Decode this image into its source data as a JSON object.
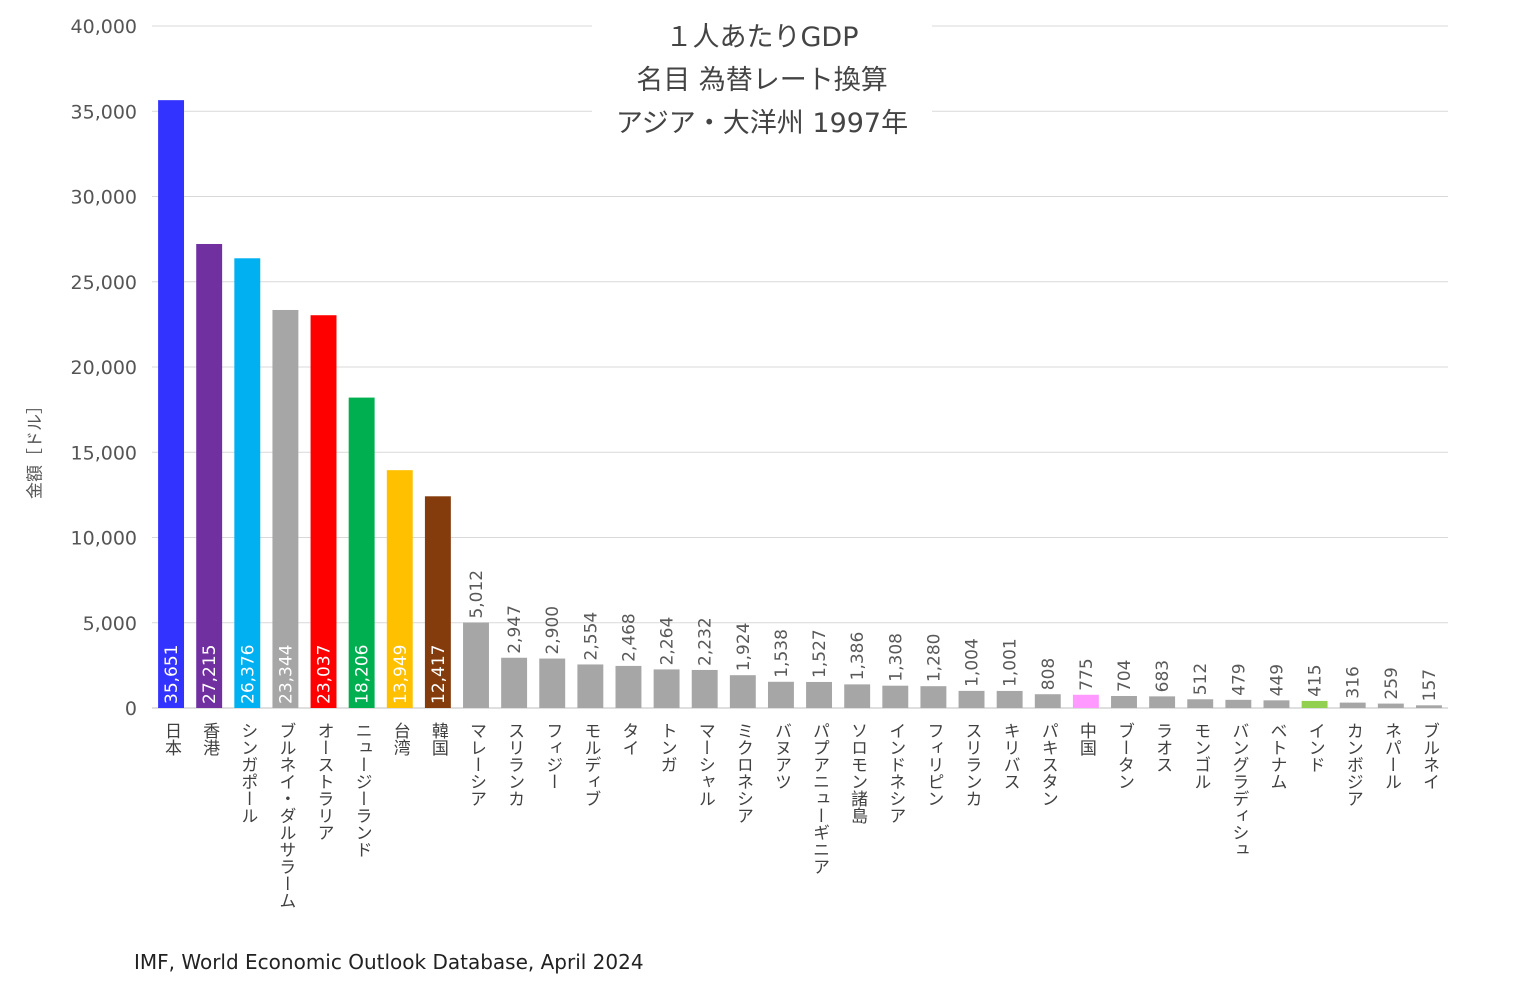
{
  "chart_data": {
    "type": "bar",
    "title_lines": [
      "１人あたりGDP",
      "名目 為替レート換算",
      "アジア・大洋州 1997年"
    ],
    "ylabel": "金額［ドル］",
    "ylim": [
      0,
      40000
    ],
    "yticks": [
      "0",
      "5,000",
      "10,000",
      "15,000",
      "20,000",
      "25,000",
      "30,000",
      "35,000",
      "40,000"
    ],
    "grid": true,
    "categories": [
      "日本",
      "香港",
      "シンガポール",
      "ブルネイ・ダルサラーム",
      "オーストラリア",
      "ニュージーランド",
      "台湾",
      "韓国",
      "マレーシア",
      "スリランカ",
      "フィジー",
      "モルディブ",
      "タイ",
      "トンガ",
      "マーシャル",
      "ミクロネシア",
      "バヌアツ",
      "パプアニューギニア",
      "ソロモン諸島",
      "インドネシア",
      "フィリピン",
      "スリランカ",
      "キリバス",
      "パキスタン",
      "中国",
      "ブータン",
      "ラオス",
      "モンゴル",
      "バングラディシュ",
      "ベトナム",
      "インド",
      "カンボジア",
      "ネパール",
      "ブルネイ"
    ],
    "values": [
      35651,
      27215,
      26376,
      23344,
      23037,
      18206,
      13949,
      12417,
      5012,
      2947,
      2900,
      2554,
      2468,
      2264,
      2232,
      1924,
      1538,
      1527,
      1386,
      1308,
      1280,
      1004,
      1001,
      808,
      775,
      704,
      683,
      512,
      479,
      449,
      415,
      316,
      259,
      157
    ],
    "labels": [
      "35,651",
      "27,215",
      "26,376",
      "23,344",
      "23,037",
      "18,206",
      "13,949",
      "12,417",
      "5,012",
      "2,947",
      "2,900",
      "2,554",
      "2,468",
      "2,264",
      "2,232",
      "1,924",
      "1,538",
      "1,527",
      "1,386",
      "1,308",
      "1,280",
      "1,004",
      "1,001",
      "808",
      "775",
      "704",
      "683",
      "512",
      "479",
      "449",
      "415",
      "316",
      "259",
      "157"
    ],
    "colors": [
      "#3333ff",
      "#7030a0",
      "#00b0f0",
      "#a6a6a6",
      "#ff0000",
      "#00b050",
      "#ffc000",
      "#843c0c",
      "#a6a6a6",
      "#a6a6a6",
      "#a6a6a6",
      "#a6a6a6",
      "#a6a6a6",
      "#a6a6a6",
      "#a6a6a6",
      "#a6a6a6",
      "#a6a6a6",
      "#a6a6a6",
      "#a6a6a6",
      "#a6a6a6",
      "#a6a6a6",
      "#a6a6a6",
      "#a6a6a6",
      "#a6a6a6",
      "#ff99ff",
      "#a6a6a6",
      "#a6a6a6",
      "#a6a6a6",
      "#a6a6a6",
      "#a6a6a6",
      "#92d050",
      "#a6a6a6",
      "#a6a6a6",
      "#a6a6a6"
    ],
    "source": "IMF, World Economic Outlook Database, April 2024"
  }
}
